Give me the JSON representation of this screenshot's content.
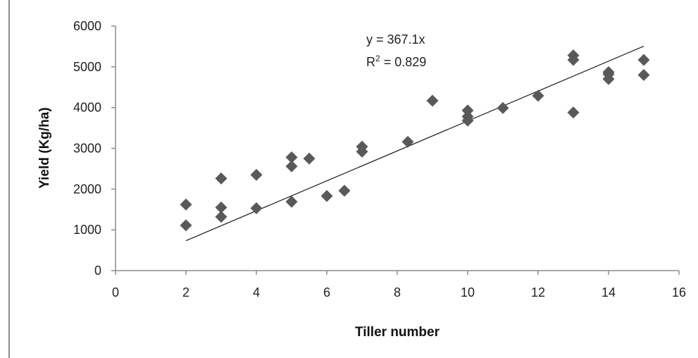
{
  "chart_data": {
    "type": "scatter",
    "xlabel": "Tiller number",
    "ylabel": "Yield (Kg/ha)",
    "xlim": [
      0,
      16
    ],
    "ylim": [
      0,
      6000
    ],
    "xticks": [
      "0",
      "2",
      "4",
      "6",
      "8",
      "10",
      "12",
      "14",
      "16"
    ],
    "yticks": [
      "0",
      "1000",
      "2000",
      "3000",
      "4000",
      "5000",
      "6000"
    ],
    "grid": false,
    "legend": "none",
    "marker_color": "#595959",
    "trendline": {
      "equation": "y = 367.1x",
      "r2_prefix": "R",
      "r2_sup": "2",
      "r2_suffix": " = 0.829",
      "slope": 367.1,
      "x_range": [
        2,
        15
      ]
    },
    "series": [
      {
        "x": [
          2,
          2,
          3,
          3,
          3,
          4,
          4,
          5,
          5,
          5,
          5.5,
          6,
          6.5,
          7,
          7,
          8.3,
          9,
          10,
          10,
          10,
          11,
          12,
          13,
          13,
          13,
          14,
          14,
          14,
          15,
          15
        ],
        "y": [
          1620,
          1110,
          2260,
          1550,
          1320,
          2350,
          1530,
          2780,
          2560,
          1690,
          2750,
          1830,
          1960,
          3040,
          2920,
          3160,
          4170,
          3930,
          3780,
          3680,
          3990,
          4290,
          5280,
          5170,
          3880,
          4870,
          4700,
          4820,
          5170,
          4800
        ]
      }
    ]
  }
}
